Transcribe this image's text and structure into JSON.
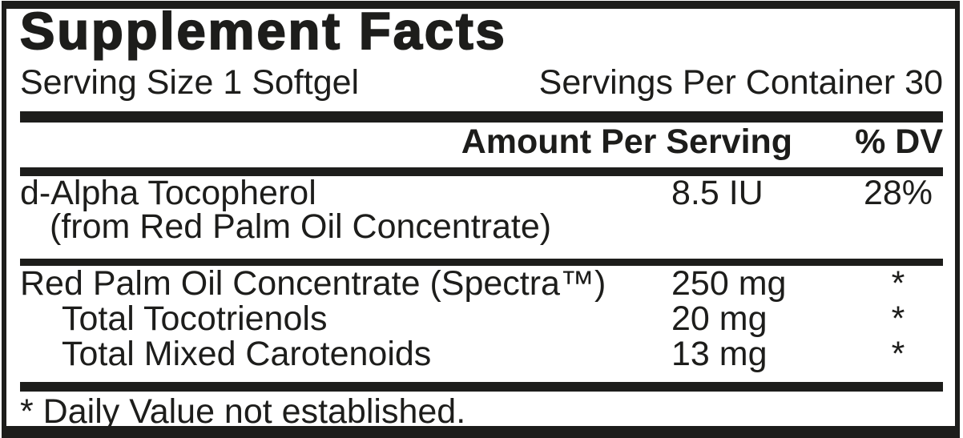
{
  "title": "Supplement Facts",
  "serving_info": {
    "serving_size": "Serving Size 1 Softgel",
    "servings_per_container": "Servings Per Container 30"
  },
  "columns": {
    "amount_header": "Amount Per Serving",
    "dv_header": "% DV"
  },
  "nutrients": [
    {
      "name": "d-Alpha Tocopherol",
      "detail": "(from Red Palm Oil Concentrate)",
      "amount": "8.5 IU",
      "dv": "28%"
    },
    {
      "name": "Red Palm Oil Concentrate (Spectra™)",
      "amount": "250 mg",
      "dv": "*"
    },
    {
      "name": "Total Tocotrienols",
      "amount": "20 mg",
      "dv": "*"
    },
    {
      "name": "Total Mixed Carotenoids",
      "amount": "13 mg",
      "dv": "*"
    }
  ],
  "footnote": "* Daily Value not established.",
  "colors": {
    "ink": "#1d1d1b",
    "background": "#ffffff"
  }
}
